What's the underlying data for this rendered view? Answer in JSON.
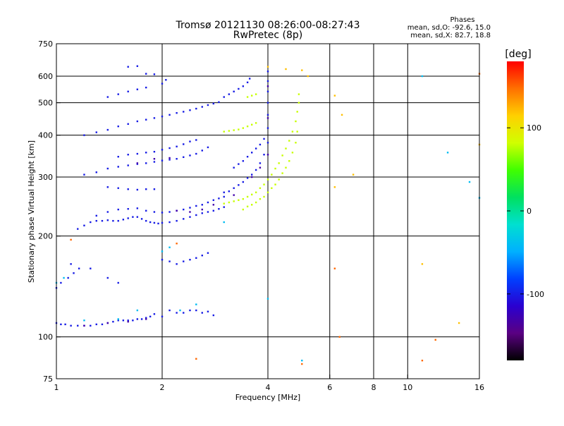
{
  "chart_data": {
    "type": "scatter",
    "title": "Tromsø 20121130 08:26:00-08:27:43",
    "subtitle": "RwPretec (8p)",
    "xlabel": "Frequency [MHz]",
    "ylabel": "Stationary phase Virtual Height [km]",
    "x_scale": "log",
    "y_scale": "log",
    "xlim": [
      1,
      16
    ],
    "ylim": [
      75,
      750
    ],
    "x_ticks": [
      {
        "value": 1,
        "label": "1"
      },
      {
        "value": 2,
        "label": "2"
      },
      {
        "value": 4,
        "label": "4"
      },
      {
        "value": 6,
        "label": "6"
      },
      {
        "value": 8,
        "label": "8"
      },
      {
        "value": 10,
        "label": "10"
      },
      {
        "value": 16,
        "label": "16"
      }
    ],
    "y_ticks": [
      {
        "value": 75,
        "label": "75"
      },
      {
        "value": 100,
        "label": "100"
      },
      {
        "value": 200,
        "label": "200"
      },
      {
        "value": 300,
        "label": "300"
      },
      {
        "value": 400,
        "label": "400"
      },
      {
        "value": 500,
        "label": "500"
      },
      {
        "value": 600,
        "label": "600"
      },
      {
        "value": 750,
        "label": "750"
      }
    ],
    "grid": true,
    "grid_x": [
      2,
      4,
      6,
      8,
      10
    ],
    "grid_y": [
      100,
      200,
      300,
      400,
      500,
      600
    ],
    "annotation": {
      "heading": "Phases",
      "line1": "mean, sd,O: -92.6, 15.0",
      "line2": "mean, sd,X:  82.7, 18.8"
    },
    "colorbar": {
      "label": "[deg]",
      "range": [
        -180,
        180
      ],
      "ticks": [
        {
          "value": 100,
          "label": "100"
        },
        {
          "value": 0,
          "label": "0"
        },
        {
          "value": -100,
          "label": "-100"
        }
      ],
      "colormap": [
        "#000000",
        "#5a0082",
        "#2a00d0",
        "#0040ff",
        "#00b0ff",
        "#00e0d0",
        "#00e060",
        "#40ff00",
        "#d0ff00",
        "#ffd000",
        "#ff7000",
        "#ff0000"
      ]
    },
    "series": [
      {
        "phase": -100,
        "points": [
          [
            1.0,
            110
          ],
          [
            1.03,
            109
          ],
          [
            1.06,
            109
          ],
          [
            1.1,
            108
          ],
          [
            1.15,
            108
          ],
          [
            1.2,
            108
          ],
          [
            1.25,
            108
          ],
          [
            1.3,
            109
          ],
          [
            1.35,
            109
          ],
          [
            1.4,
            110
          ],
          [
            1.45,
            111
          ],
          [
            1.5,
            112
          ],
          [
            1.55,
            112
          ],
          [
            1.6,
            112
          ],
          [
            1.65,
            112
          ],
          [
            1.7,
            113
          ],
          [
            1.75,
            113
          ],
          [
            1.8,
            114
          ],
          [
            1.85,
            115
          ],
          [
            1.9,
            117
          ],
          [
            1.0,
            140
          ],
          [
            1.03,
            145
          ],
          [
            1.08,
            150
          ],
          [
            1.12,
            155
          ],
          [
            1.16,
            160
          ],
          [
            1.15,
            210
          ],
          [
            1.2,
            215
          ],
          [
            1.25,
            220
          ],
          [
            1.3,
            222
          ],
          [
            1.35,
            222
          ],
          [
            1.4,
            223
          ],
          [
            1.45,
            222
          ],
          [
            1.5,
            222
          ],
          [
            1.55,
            224
          ],
          [
            1.6,
            226
          ],
          [
            1.65,
            228
          ],
          [
            1.7,
            228
          ],
          [
            1.75,
            225
          ],
          [
            1.8,
            222
          ],
          [
            1.85,
            220
          ],
          [
            1.9,
            219
          ],
          [
            1.95,
            218
          ],
          [
            2.0,
            219
          ],
          [
            2.1,
            220
          ],
          [
            2.2,
            222
          ],
          [
            2.3,
            225
          ],
          [
            2.4,
            228
          ],
          [
            2.5,
            231
          ],
          [
            2.6,
            234
          ],
          [
            2.7,
            236
          ],
          [
            2.8,
            238
          ],
          [
            2.9,
            241
          ],
          [
            3.0,
            244
          ],
          [
            1.3,
            230
          ],
          [
            1.4,
            236
          ],
          [
            1.5,
            240
          ],
          [
            1.6,
            241
          ],
          [
            1.7,
            242
          ],
          [
            1.8,
            238
          ],
          [
            1.9,
            236
          ],
          [
            2.0,
            235
          ],
          [
            2.1,
            236
          ],
          [
            2.2,
            238
          ],
          [
            2.3,
            240
          ],
          [
            2.4,
            243
          ],
          [
            2.5,
            246
          ],
          [
            2.6,
            248
          ],
          [
            2.7,
            252
          ],
          [
            2.8,
            256
          ],
          [
            2.9,
            259
          ],
          [
            3.0,
            262
          ],
          [
            1.4,
            280
          ],
          [
            1.5,
            278
          ],
          [
            1.6,
            276
          ],
          [
            1.7,
            275
          ],
          [
            1.8,
            276
          ],
          [
            1.9,
            276
          ],
          [
            1.2,
            305
          ],
          [
            1.3,
            310
          ],
          [
            1.4,
            318
          ],
          [
            1.5,
            322
          ],
          [
            1.6,
            325
          ],
          [
            1.7,
            328
          ],
          [
            1.8,
            330
          ],
          [
            1.9,
            333
          ],
          [
            2.0,
            336
          ],
          [
            2.1,
            338
          ],
          [
            2.2,
            340
          ],
          [
            2.3,
            344
          ],
          [
            2.4,
            348
          ],
          [
            2.5,
            352
          ],
          [
            2.6,
            360
          ],
          [
            2.7,
            368
          ],
          [
            1.5,
            345
          ],
          [
            1.6,
            350
          ],
          [
            1.7,
            352
          ],
          [
            1.8,
            355
          ],
          [
            1.9,
            357
          ],
          [
            2.0,
            362
          ],
          [
            2.1,
            366
          ],
          [
            2.2,
            370
          ],
          [
            2.3,
            376
          ],
          [
            2.4,
            383
          ],
          [
            2.5,
            387
          ],
          [
            1.2,
            400
          ],
          [
            1.3,
            408
          ],
          [
            1.4,
            415
          ],
          [
            1.5,
            425
          ],
          [
            1.6,
            432
          ],
          [
            1.7,
            440
          ],
          [
            1.8,
            445
          ],
          [
            1.9,
            450
          ],
          [
            2.0,
            455
          ],
          [
            2.1,
            460
          ],
          [
            2.2,
            466
          ],
          [
            2.3,
            470
          ],
          [
            2.4,
            475
          ],
          [
            2.5,
            480
          ],
          [
            2.6,
            486
          ],
          [
            2.7,
            492
          ],
          [
            2.8,
            497
          ],
          [
            2.9,
            502
          ],
          [
            1.4,
            520
          ],
          [
            1.5,
            530
          ],
          [
            1.6,
            540
          ],
          [
            1.7,
            548
          ],
          [
            1.8,
            555
          ],
          [
            2.0,
            570
          ],
          [
            2.05,
            585
          ],
          [
            1.6,
            640
          ],
          [
            1.7,
            643
          ],
          [
            1.8,
            610
          ],
          [
            1.9,
            608
          ],
          [
            1.1,
            165
          ],
          [
            1.25,
            160
          ],
          [
            1.4,
            150
          ],
          [
            1.5,
            145
          ],
          [
            2.0,
            115
          ],
          [
            2.1,
            120
          ],
          [
            2.2,
            118
          ],
          [
            2.3,
            118
          ],
          [
            2.4,
            120
          ],
          [
            2.5,
            120
          ],
          [
            2.6,
            118
          ],
          [
            2.7,
            119
          ],
          [
            2.8,
            116
          ],
          [
            2.0,
            170
          ],
          [
            2.1,
            168
          ],
          [
            2.2,
            165
          ],
          [
            2.3,
            168
          ],
          [
            2.4,
            170
          ],
          [
            2.5,
            172
          ],
          [
            2.6,
            175
          ],
          [
            2.7,
            178
          ],
          [
            3.0,
            270
          ],
          [
            3.1,
            272
          ],
          [
            3.2,
            278
          ],
          [
            3.3,
            284
          ],
          [
            3.4,
            290
          ],
          [
            3.5,
            298
          ],
          [
            3.6,
            305
          ],
          [
            3.7,
            315
          ],
          [
            3.8,
            330
          ],
          [
            3.9,
            350
          ],
          [
            4.0,
            380
          ],
          [
            4.0,
            420
          ],
          [
            4.0,
            460
          ],
          [
            4.0,
            500
          ],
          [
            4.0,
            540
          ],
          [
            4.0,
            580
          ],
          [
            4.0,
            620
          ],
          [
            3.0,
            520
          ],
          [
            3.1,
            530
          ],
          [
            3.2,
            540
          ],
          [
            3.3,
            550
          ],
          [
            3.4,
            560
          ],
          [
            3.5,
            575
          ],
          [
            3.55,
            590
          ],
          [
            3.2,
            320
          ],
          [
            3.3,
            328
          ],
          [
            3.4,
            335
          ],
          [
            3.5,
            345
          ],
          [
            3.6,
            355
          ],
          [
            3.7,
            365
          ],
          [
            3.8,
            375
          ],
          [
            3.9,
            390
          ]
        ]
      },
      {
        "phase": 80,
        "points": [
          [
            3.0,
            250
          ],
          [
            3.1,
            252
          ],
          [
            3.2,
            254
          ],
          [
            3.3,
            256
          ],
          [
            3.4,
            258
          ],
          [
            3.5,
            262
          ],
          [
            3.6,
            266
          ],
          [
            3.7,
            270
          ],
          [
            3.8,
            278
          ],
          [
            3.9,
            285
          ],
          [
            4.0,
            295
          ],
          [
            4.1,
            305
          ],
          [
            4.2,
            318
          ],
          [
            4.3,
            330
          ],
          [
            4.4,
            348
          ],
          [
            4.5,
            365
          ],
          [
            4.6,
            385
          ],
          [
            4.7,
            410
          ],
          [
            4.8,
            440
          ],
          [
            4.85,
            470
          ],
          [
            4.9,
            500
          ],
          [
            4.9,
            530
          ],
          [
            3.4,
            240
          ],
          [
            3.5,
            245
          ],
          [
            3.6,
            248
          ],
          [
            3.7,
            252
          ],
          [
            3.8,
            258
          ],
          [
            3.9,
            262
          ],
          [
            4.0,
            270
          ],
          [
            4.1,
            278
          ],
          [
            4.2,
            285
          ],
          [
            4.3,
            295
          ],
          [
            4.4,
            308
          ],
          [
            4.5,
            320
          ],
          [
            4.6,
            335
          ],
          [
            4.7,
            355
          ],
          [
            4.8,
            380
          ],
          [
            4.85,
            410
          ],
          [
            3.0,
            410
          ],
          [
            3.1,
            412
          ],
          [
            3.2,
            414
          ],
          [
            3.3,
            416
          ],
          [
            3.4,
            420
          ],
          [
            3.5,
            425
          ],
          [
            3.6,
            430
          ],
          [
            3.7,
            435
          ],
          [
            3.5,
            520
          ],
          [
            3.6,
            525
          ],
          [
            3.7,
            530
          ]
        ]
      },
      {
        "phase": -130,
        "points": [
          [
            1.2,
            108
          ],
          [
            1.4,
            110
          ],
          [
            1.6,
            111
          ],
          [
            1.8,
            113
          ],
          [
            2.2,
            238
          ],
          [
            2.4,
            236
          ],
          [
            2.6,
            240
          ],
          [
            2.8,
            248
          ],
          [
            3.2,
            265
          ],
          [
            3.6,
            300
          ],
          [
            3.8,
            320
          ],
          [
            4.0,
            350
          ],
          [
            4.0,
            450
          ],
          [
            4.0,
            560
          ],
          [
            1.7,
            330
          ],
          [
            1.9,
            340
          ],
          [
            2.1,
            342
          ]
        ]
      },
      {
        "phase": -40,
        "points": [
          [
            1.0,
            145
          ],
          [
            1.05,
            150
          ],
          [
            1.2,
            112
          ],
          [
            1.5,
            113
          ],
          [
            1.7,
            120
          ],
          [
            2.0,
            180
          ],
          [
            2.1,
            185
          ],
          [
            2.25,
            120
          ],
          [
            2.5,
            125
          ],
          [
            3.0,
            220
          ],
          [
            4.0,
            130
          ],
          [
            5.0,
            85
          ],
          [
            11.0,
            600
          ],
          [
            13.0,
            355
          ],
          [
            15.0,
            290
          ],
          [
            16.0,
            260
          ]
        ]
      },
      {
        "phase": 150,
        "points": [
          [
            1.1,
            195
          ],
          [
            2.2,
            190
          ],
          [
            2.5,
            86
          ],
          [
            5.0,
            83
          ],
          [
            6.2,
            160
          ],
          [
            6.4,
            100
          ],
          [
            11.0,
            85
          ],
          [
            12.0,
            98
          ],
          [
            16.0,
            610
          ]
        ]
      },
      {
        "phase": 120,
        "points": [
          [
            4.0,
            640
          ],
          [
            4.5,
            630
          ],
          [
            5.0,
            625
          ],
          [
            5.2,
            600
          ],
          [
            6.2,
            525
          ],
          [
            6.5,
            460
          ],
          [
            7.0,
            305
          ],
          [
            6.2,
            280
          ],
          [
            11.0,
            165
          ],
          [
            14.0,
            110
          ],
          [
            16.0,
            375
          ]
        ]
      }
    ]
  }
}
